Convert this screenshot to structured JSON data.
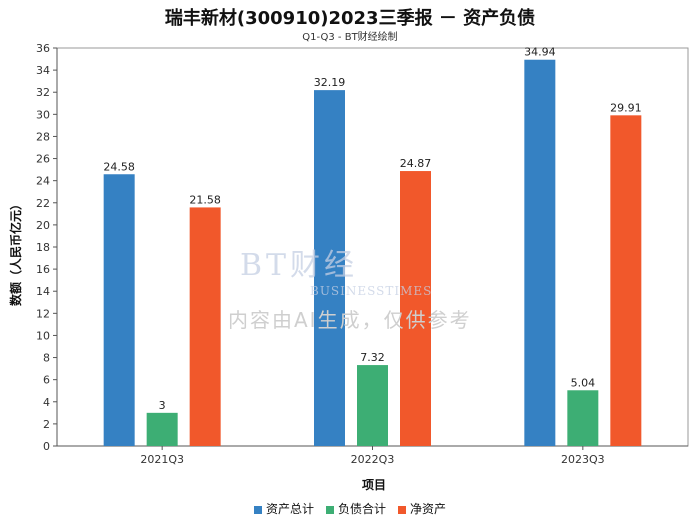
{
  "chart_data": {
    "type": "bar",
    "title": "瑞丰新材(300910)2023三季报 － 资产负债",
    "subtitle": "Q1-Q3 - BT财经绘制",
    "xlabel": "项目",
    "ylabel": "数额（人民币亿元）",
    "ylim": [
      0,
      36
    ],
    "yticks": [
      0,
      2,
      4,
      6,
      8,
      10,
      12,
      14,
      16,
      18,
      20,
      22,
      24,
      26,
      28,
      30,
      32,
      34,
      36
    ],
    "categories": [
      "2021Q3",
      "2022Q3",
      "2023Q3"
    ],
    "series": [
      {
        "name": "资产总计",
        "color": "#3581c3",
        "values": [
          24.58,
          32.19,
          34.94
        ],
        "labels": [
          "24.58",
          "32.19",
          "34.94"
        ]
      },
      {
        "name": "负债合计",
        "color": "#3dae74",
        "values": [
          3,
          7.32,
          5.04
        ],
        "labels": [
          "3",
          "7.32",
          "5.04"
        ]
      },
      {
        "name": "净资产",
        "color": "#f1582b",
        "values": [
          21.58,
          24.87,
          29.91
        ],
        "labels": [
          "21.58",
          "24.87",
          "29.91"
        ]
      }
    ],
    "legend_position": "bottom",
    "grid": false
  },
  "watermark": {
    "brand": "BT财经",
    "sub": "BUSINESSTIMES",
    "note": "内容由AI生成，仅供参考"
  }
}
